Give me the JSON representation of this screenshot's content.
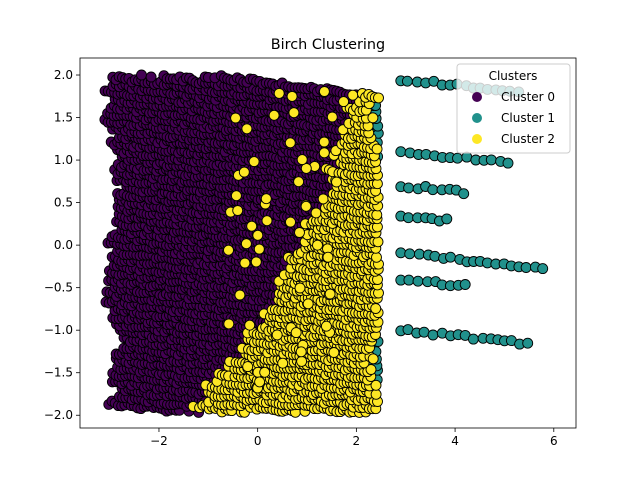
{
  "chart_data": {
    "type": "scatter",
    "title": "Birch Clustering",
    "xlabel": "",
    "ylabel": "",
    "xlim": [
      -3.6,
      6.45
    ],
    "ylim": [
      -2.15,
      2.2
    ],
    "xticks": [
      -2,
      0,
      2,
      4,
      6
    ],
    "yticks": [
      -2.0,
      -1.5,
      -1.0,
      -0.5,
      0.0,
      0.5,
      1.0,
      1.5,
      2.0
    ],
    "grid": false,
    "legend": {
      "title": "Clusters",
      "placement": "top-right"
    },
    "series": [
      {
        "name": "Cluster 0",
        "color": "#440154",
        "band_step": 0.34,
        "stripe_slope": -0.075,
        "x_range": [
          -3.1,
          2.3
        ],
        "y_range": [
          -1.95,
          2.0
        ],
        "sample_points": [
          [
            -2.5,
            1.2
          ],
          [
            -1.5,
            1.85
          ],
          [
            -0.5,
            1.95
          ],
          [
            1.0,
            1.8
          ],
          [
            -2.8,
            0.6
          ],
          [
            -1.0,
            0.9
          ],
          [
            0.5,
            0.3
          ],
          [
            -2.5,
            -0.3
          ],
          [
            -1.2,
            -0.6
          ],
          [
            1.5,
            -1.0
          ],
          [
            -2.7,
            -1.5
          ],
          [
            -1.0,
            -1.9
          ],
          [
            0.5,
            -1.9
          ],
          [
            2.0,
            -1.6
          ]
        ]
      },
      {
        "name": "Cluster 1",
        "color": "#21918c",
        "band_step": 0.34,
        "stripe_slope": -0.075,
        "x_range": [
          1.7,
          6.0
        ],
        "y_range": [
          -1.2,
          1.95
        ],
        "sample_points": [
          [
            3.2,
            1.88
          ],
          [
            4.5,
            1.7
          ],
          [
            5.3,
            1.7
          ],
          [
            3.5,
            1.1
          ],
          [
            4.8,
            1.0
          ],
          [
            5.1,
            0.93
          ],
          [
            3.6,
            0.5
          ],
          [
            4.2,
            0.3
          ],
          [
            3.0,
            -0.3
          ],
          [
            5.0,
            -0.25
          ],
          [
            6.0,
            -0.5
          ],
          [
            4.0,
            -1.05
          ],
          [
            5.5,
            -1.2
          ]
        ]
      },
      {
        "name": "Cluster 2",
        "color": "#fde725",
        "band_step": 0.34,
        "stripe_slope": -0.075,
        "x_range": [
          -0.4,
          3.3
        ],
        "y_range": [
          -1.85,
          2.0
        ],
        "sample_points": [
          [
            0.3,
            1.95
          ],
          [
            1.2,
            1.85
          ],
          [
            2.0,
            1.75
          ],
          [
            2.5,
            1.2
          ],
          [
            3.0,
            0.6
          ],
          [
            2.2,
            0.2
          ],
          [
            1.5,
            -0.2
          ],
          [
            2.8,
            -0.5
          ],
          [
            2.5,
            -1.0
          ],
          [
            2.0,
            -1.4
          ],
          [
            0.8,
            -1.8
          ],
          [
            3.0,
            -1.4
          ]
        ]
      }
    ]
  }
}
